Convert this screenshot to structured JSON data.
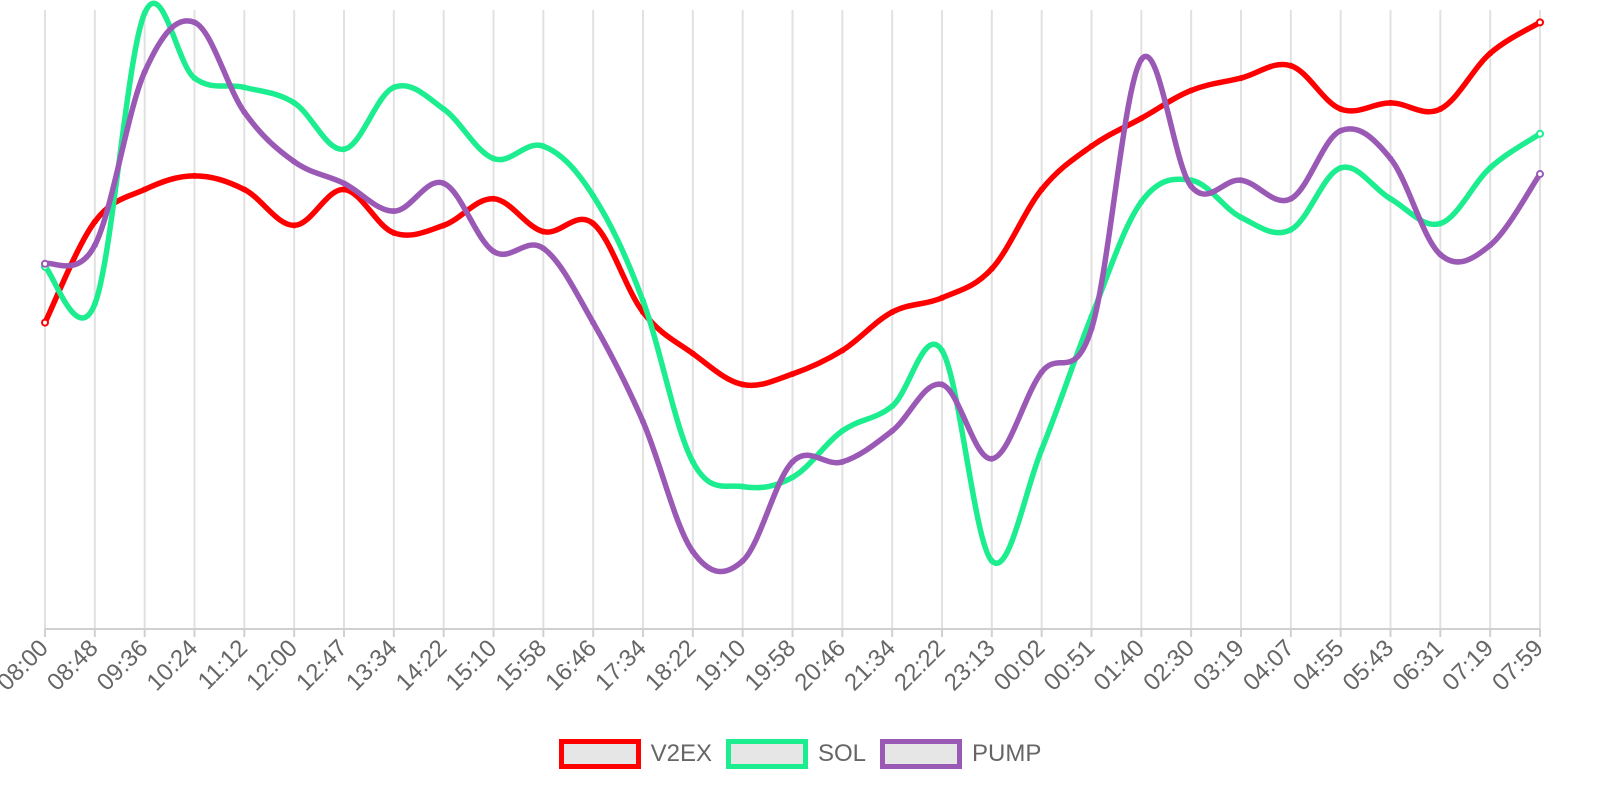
{
  "chart_data": {
    "type": "line",
    "x": [
      "08:00",
      "08:48",
      "09:36",
      "10:24",
      "11:12",
      "12:00",
      "12:47",
      "13:34",
      "14:22",
      "15:10",
      "15:58",
      "16:46",
      "17:34",
      "18:22",
      "19:10",
      "19:58",
      "20:46",
      "21:34",
      "22:22",
      "23:13",
      "00:02",
      "00:51",
      "01:40",
      "02:30",
      "03:19",
      "04:07",
      "04:55",
      "05:43",
      "06:31",
      "07:19",
      "07:59"
    ],
    "ylim": [
      0,
      100
    ],
    "grid": true,
    "legend_position": "bottom",
    "series": [
      {
        "name": "V2EX",
        "color": "#ff0000",
        "values": [
          50.5,
          34.2,
          29,
          26.8,
          29,
          34.8,
          29,
          36,
          34.8,
          30.5,
          35.8,
          34.5,
          48.8,
          55.5,
          60.5,
          58.8,
          55,
          48.8,
          46.5,
          41.8,
          29,
          22,
          17.5,
          13,
          11,
          9,
          16,
          15,
          16,
          7,
          2
        ]
      },
      {
        "name": "SOL",
        "color": "#1ced8f",
        "values": [
          41.5,
          47.5,
          0.5,
          11,
          12.5,
          15,
          22.5,
          12.5,
          16,
          24,
          22,
          30,
          47,
          73,
          77,
          75.5,
          68,
          64,
          55,
          89,
          71,
          49.5,
          31,
          27.5,
          33.5,
          35.5,
          25.5,
          30.5,
          34.5,
          25.5,
          20
        ]
      },
      {
        "name": "PUMP",
        "color": "#9b59b6",
        "values": [
          41,
          38,
          10,
          2,
          16.5,
          24.5,
          28,
          32.5,
          28,
          39,
          38.5,
          50.5,
          66.5,
          87.5,
          89,
          73,
          73,
          68,
          60.5,
          72.5,
          58.5,
          51.5,
          8,
          28.5,
          27.5,
          30.5,
          19.5,
          24,
          39.5,
          38,
          26.5
        ]
      }
    ]
  }
}
